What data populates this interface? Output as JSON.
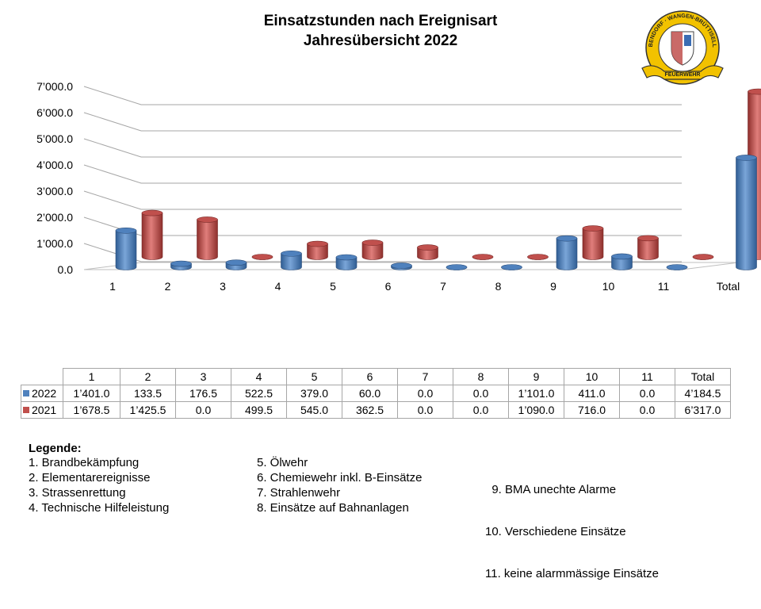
{
  "title_line1": "Einsatzstunden nach Ereignisart",
  "title_line2": "Jahresübersicht 2022",
  "chart_data": {
    "type": "bar",
    "categories": [
      "1",
      "2",
      "3",
      "4",
      "5",
      "6",
      "7",
      "8",
      "9",
      "10",
      "11",
      "Total"
    ],
    "series": [
      {
        "name": "2022",
        "color": "#4f81bd",
        "values": [
          1401.0,
          133.5,
          176.5,
          522.5,
          379.0,
          60.0,
          0.0,
          0.0,
          1101.0,
          411.0,
          0.0,
          4184.5
        ]
      },
      {
        "name": "2021",
        "color": "#c0504d",
        "values": [
          1678.5,
          1425.5,
          0.0,
          499.5,
          545.0,
          362.5,
          0.0,
          0.0,
          1090.0,
          716.0,
          0.0,
          6317.0
        ]
      }
    ],
    "yticks": [
      "0.0",
      "1’000.0",
      "2’000.0",
      "3’000.0",
      "4’000.0",
      "5’000.0",
      "6’000.0",
      "7’000.0"
    ],
    "ylim": [
      0,
      7000
    ],
    "grid": true,
    "legend": "data-table-below"
  },
  "table": {
    "header": [
      "1",
      "2",
      "3",
      "4",
      "5",
      "6",
      "7",
      "8",
      "9",
      "10",
      "11",
      "Total"
    ],
    "rows": [
      {
        "label": "2022",
        "color": "#4f81bd",
        "cells": [
          "1’401.0",
          "133.5",
          "176.5",
          "522.5",
          "379.0",
          "60.0",
          "0.0",
          "0.0",
          "1’101.0",
          "411.0",
          "0.0",
          "4’184.5"
        ]
      },
      {
        "label": "2021",
        "color": "#c0504d",
        "cells": [
          "1’678.5",
          "1’425.5",
          "0.0",
          "499.5",
          "545.0",
          "362.5",
          "0.0",
          "0.0",
          "1’090.0",
          "716.0",
          "0.0",
          "6’317.0"
        ]
      }
    ]
  },
  "legend": {
    "heading": "Legende:",
    "columns": [
      [
        "1.  Brandbekämpfung",
        "2.  Elementarereignisse",
        "3.  Strassenrettung",
        "4.  Technische Hilfeleistung"
      ],
      [
        "5. Ölwehr",
        "6. Chemiewehr inkl. B-Einsätze",
        "7. Strahlenwehr",
        "8. Einsätze auf Bahnanlagen"
      ],
      [
        "  9. BMA unechte Alarme",
        "10. Verschiedene Einsätze",
        "11. keine alarmmässige Einsätze"
      ]
    ]
  },
  "logo": {
    "ring_text": "DÜBENDORF · WANGEN-BRÜTTISELLEN",
    "banner_text": "FEUERWEHR"
  }
}
